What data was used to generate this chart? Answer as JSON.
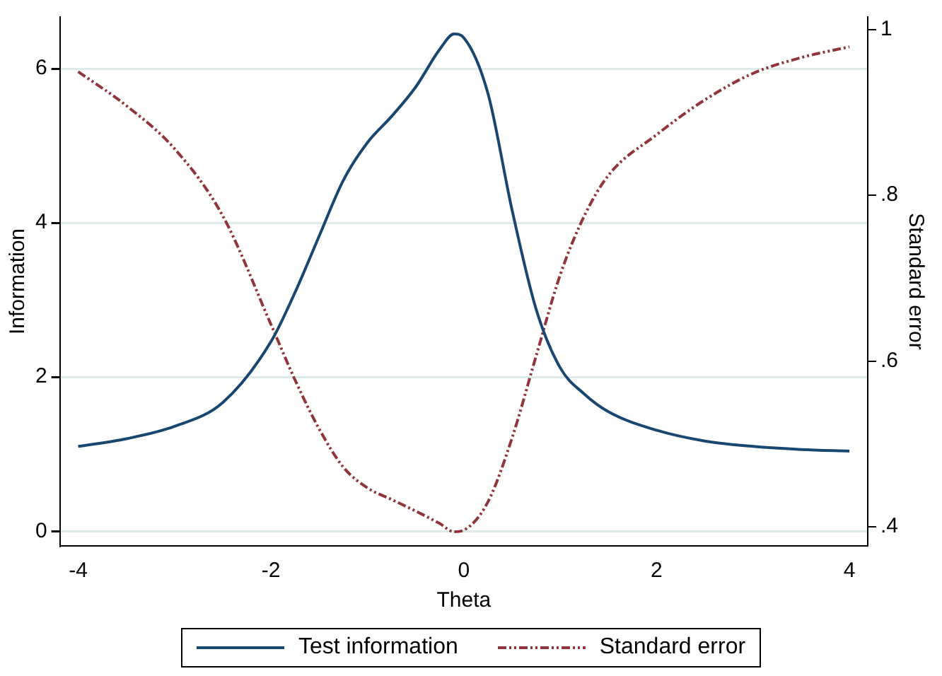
{
  "chart_data": {
    "type": "line",
    "xlabel": "Theta",
    "ylabel": "Information",
    "y2label": "Standard error",
    "xlim": [
      -4.19,
      4.19
    ],
    "xticks": [
      -4,
      -2,
      0,
      2,
      4
    ],
    "ylim": [
      -0.19,
      6.67
    ],
    "yticks": [
      0,
      2,
      4,
      6
    ],
    "y2lim": [
      0.377,
      1.015
    ],
    "y2ticks": [
      {
        "value": 0.4,
        "label": ".4"
      },
      {
        "value": 0.6,
        "label": ".6"
      },
      {
        "value": 0.8,
        "label": ".8"
      },
      1
    ],
    "x": [
      -4,
      -3.5,
      -3,
      -2.5,
      -2,
      -1.75,
      -1.5,
      -1.25,
      -1,
      -0.75,
      -0.5,
      -0.25,
      -0.1,
      0,
      0.25,
      0.5,
      0.75,
      1,
      1.25,
      1.5,
      2,
      2.5,
      3,
      3.5,
      4
    ],
    "grid": "y",
    "legend": "bottom",
    "marker": "none",
    "series": [
      {
        "name": "Test information",
        "color": "#1a476f",
        "line_style": "solid",
        "values": [
          1.1,
          1.2,
          1.36,
          1.67,
          2.46,
          3.1,
          3.83,
          4.55,
          5.04,
          5.38,
          5.76,
          6.25,
          6.45,
          6.4,
          5.68,
          4.17,
          2.88,
          2.12,
          1.78,
          1.55,
          1.31,
          1.17,
          1.1,
          1.06,
          1.04
        ]
      },
      {
        "name": "Standard error",
        "color": "#90353b",
        "line_style": "dashed",
        "axis": "y2",
        "values": [
          0.949,
          0.908,
          0.856,
          0.775,
          0.644,
          0.577,
          0.518,
          0.472,
          0.447,
          0.433,
          0.419,
          0.404,
          0.394,
          0.396,
          0.43,
          0.507,
          0.606,
          0.704,
          0.775,
          0.824,
          0.873,
          0.915,
          0.947,
          0.966,
          0.979
        ]
      }
    ]
  }
}
